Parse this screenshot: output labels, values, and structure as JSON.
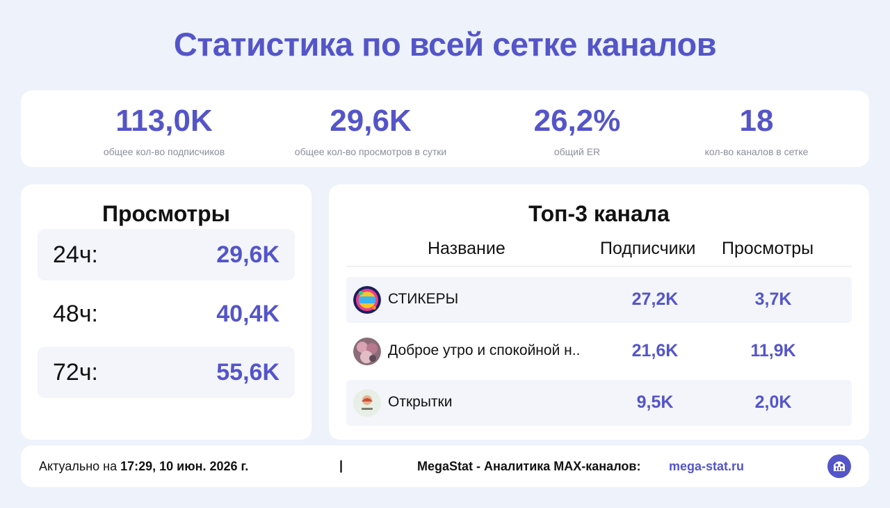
{
  "title": "Статистика по всей сетке каналов",
  "colors": {
    "accent": "#5455c9",
    "background": "#edf2fb",
    "card": "#ffffff",
    "muted": "#8a8e99"
  },
  "summary": [
    {
      "value": "113,0K",
      "label": "общее кол-во подписчиков"
    },
    {
      "value": "29,6K",
      "label": "общее кол-во просмотров в сутки"
    },
    {
      "value": "26,2%",
      "label": "общий ER"
    },
    {
      "value": "18",
      "label": "кол-во каналов в сетке"
    }
  ],
  "views": {
    "title": "Просмотры",
    "rows": [
      {
        "period": "24ч:",
        "value": "29,6K"
      },
      {
        "period": "48ч:",
        "value": "40,4K"
      },
      {
        "period": "72ч:",
        "value": "55,6K"
      }
    ]
  },
  "top3": {
    "title": "Топ-3 канала",
    "headers": {
      "name": "Название",
      "subscribers": "Подписчики",
      "views": "Просмотры"
    },
    "rows": [
      {
        "name": "СТИКЕРЫ",
        "subscribers": "27,2K",
        "views": "3,7K",
        "avatar": "stickers-avatar-icon"
      },
      {
        "name": "Доброе утро и спокойной н..",
        "subscribers": "21,6K",
        "views": "11,9K",
        "avatar": "flowers-avatar-icon"
      },
      {
        "name": "Открытки",
        "subscribers": "9,5K",
        "views": "2,0K",
        "avatar": "postcards-avatar-icon"
      }
    ]
  },
  "footer": {
    "updated_prefix": "Актуально на ",
    "updated_value": "17:29, 10 июн. 2026 г.",
    "separator": "|",
    "brand": "MegaStat - Аналитика MAX-каналов:",
    "site": "mega-stat.ru",
    "logo": "megastat-logo-icon"
  }
}
